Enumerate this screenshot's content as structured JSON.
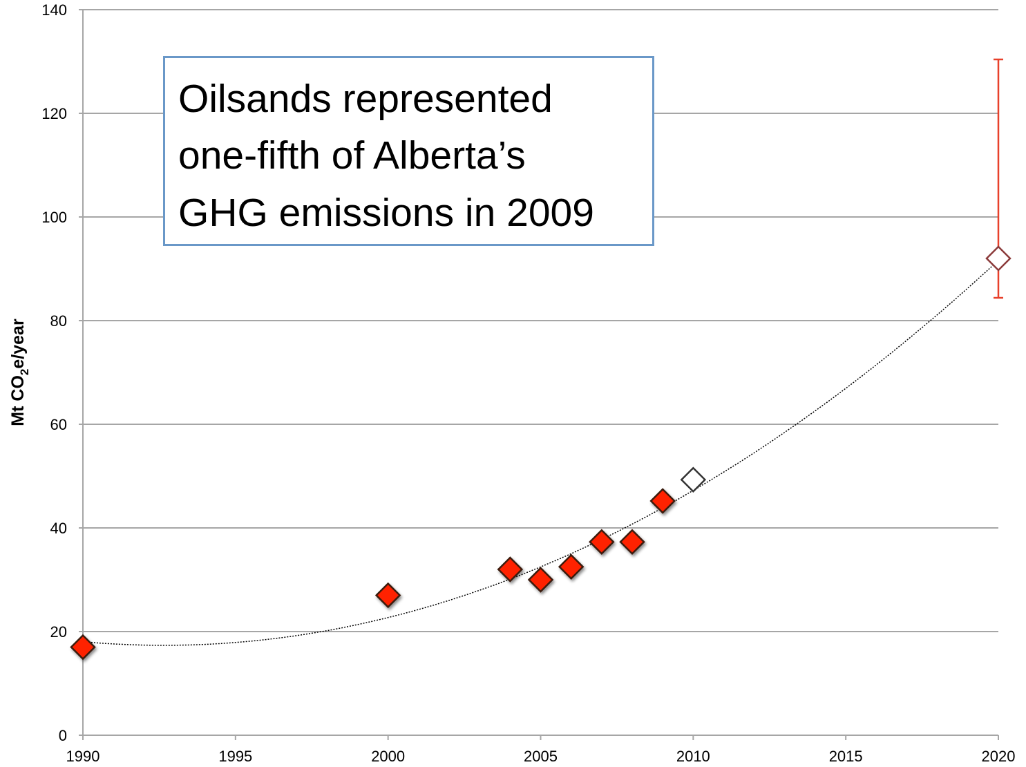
{
  "chart_data": {
    "type": "scatter",
    "ylabel": [
      "Mt CO",
      "2",
      "e/year"
    ],
    "annotation": [
      "Oilsands represented",
      "one-fifth of Alberta’s",
      "GHG emissions in 2009"
    ],
    "xlim": [
      1990,
      2020
    ],
    "xticks": [
      1990,
      1995,
      2000,
      2005,
      2010,
      2015,
      2020
    ],
    "ylim": [
      0,
      140
    ],
    "yticks": [
      0,
      20,
      40,
      60,
      80,
      100,
      120,
      140
    ],
    "grid": true,
    "trendline": true,
    "series": [
      {
        "color": "#ff2200",
        "marker": "filled",
        "x": [
          1990,
          2000,
          2004,
          2005,
          2006,
          2007,
          2008,
          2009
        ],
        "values": [
          17,
          27,
          32,
          30,
          32.5,
          37.3,
          37.3,
          45.2
        ]
      },
      {
        "color": "#333333",
        "marker": "open",
        "x": [
          2010
        ],
        "values": [
          49.3
        ]
      },
      {
        "color": "#8b3a3a",
        "marker": "open",
        "x": [
          2020
        ],
        "values": [
          92
        ],
        "error_low": [
          7.6
        ],
        "error_high": [
          38.4
        ],
        "error_color": "#e8402a"
      }
    ]
  }
}
